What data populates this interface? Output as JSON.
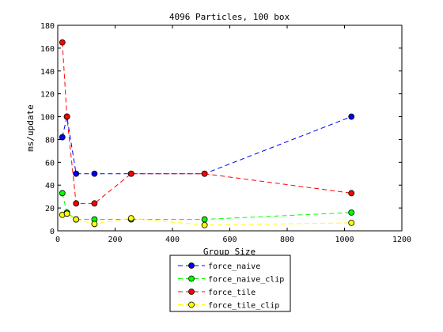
{
  "chart_data": {
    "type": "line",
    "title": "4096 Particles, 100 box",
    "xlabel": "Group Size",
    "ylabel": "ms/update",
    "xlim": [
      0,
      1200
    ],
    "ylim": [
      0,
      180
    ],
    "xticks": [
      0,
      200,
      400,
      600,
      800,
      1000,
      1200
    ],
    "yticks": [
      0,
      20,
      40,
      60,
      80,
      100,
      120,
      140,
      160,
      180
    ],
    "grid": false,
    "legend_position": "bottom-center",
    "series": [
      {
        "name": "force_naive",
        "color": "#0000ff",
        "marker_color": "#0000ff",
        "x": [
          16,
          32,
          64,
          128,
          256,
          512,
          1024
        ],
        "y": [
          82,
          100,
          50,
          50,
          50,
          50,
          100
        ]
      },
      {
        "name": "force_naive_clip",
        "color": "#00ff00",
        "marker_color": "#00ff00",
        "x": [
          16,
          32,
          64,
          128,
          256,
          512,
          1024
        ],
        "y": [
          33,
          16,
          10,
          10,
          10,
          10,
          16
        ]
      },
      {
        "name": "force_tile",
        "color": "#ff0000",
        "marker_color": "#ff0000",
        "x": [
          16,
          32,
          64,
          128,
          256,
          512,
          1024
        ],
        "y": [
          165,
          100,
          24,
          24,
          50,
          50,
          33
        ]
      },
      {
        "name": "force_tile_clip",
        "color": "#ffff00",
        "marker_color": "#ffff00",
        "x": [
          16,
          32,
          64,
          128,
          256,
          512,
          1024
        ],
        "y": [
          14,
          15,
          10,
          6,
          11,
          5,
          7
        ]
      }
    ]
  }
}
